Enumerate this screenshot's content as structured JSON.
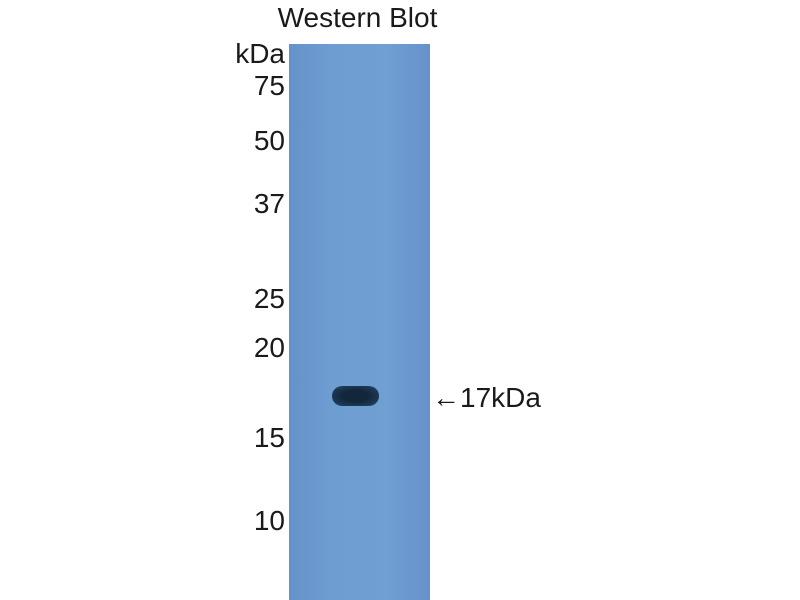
{
  "title": "Western Blot",
  "unit_label": "kDa",
  "markers": [
    "75",
    "50",
    "37",
    "25",
    "20",
    "15",
    "10"
  ],
  "band_label": "←17kDa",
  "colors": {
    "membrane": "#6e9dd2",
    "band": "#16304a"
  }
}
